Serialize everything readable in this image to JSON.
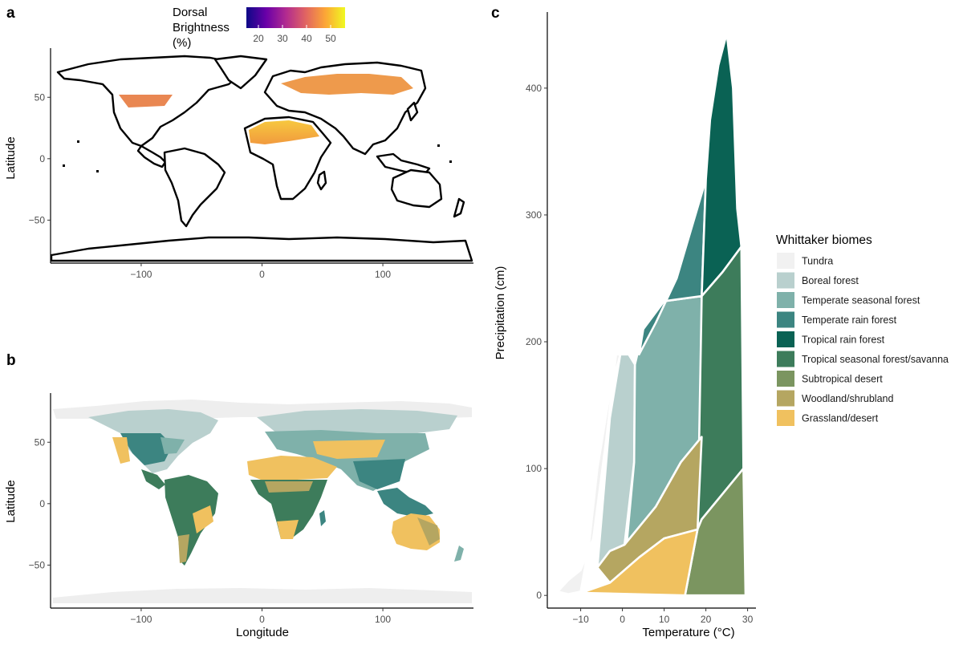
{
  "panels": {
    "a": {
      "label": "a",
      "type": "map",
      "ylabel": "Latitude",
      "xticks": [
        -100,
        0,
        100
      ],
      "yticks": [
        -50,
        0,
        50
      ],
      "xlim": [
        -175,
        175
      ],
      "ylim": [
        -85,
        90
      ],
      "colorbar": {
        "title_lines": [
          "Dorsal",
          "Brightness",
          "(%)"
        ],
        "ticks": [
          20,
          30,
          40,
          50
        ],
        "range": [
          15,
          56
        ],
        "colors": [
          "#0d0887",
          "#6a00a8",
          "#b12a90",
          "#e16462",
          "#fca636",
          "#f0f921"
        ]
      }
    },
    "b": {
      "label": "b",
      "type": "map",
      "xlabel": "Longitude",
      "ylabel": "Latitude",
      "xticks": [
        -100,
        0,
        100
      ],
      "yticks": [
        -50,
        0,
        50
      ],
      "xlim": [
        -175,
        175
      ],
      "ylim": [
        -85,
        90
      ]
    },
    "c": {
      "label": "c",
      "type": "area",
      "xlabel": "Temperature (°C)",
      "ylabel": "Precipitation (cm)",
      "xticks": [
        -10,
        0,
        10,
        20,
        30
      ],
      "yticks": [
        0,
        100,
        200,
        300,
        400
      ],
      "xlim": [
        -18,
        32
      ],
      "ylim": [
        -10,
        460
      ]
    }
  },
  "legend": {
    "title": "Whittaker biomes",
    "items": [
      {
        "label": "Tundra",
        "color": "#f1f1f1"
      },
      {
        "label": "Boreal forest",
        "color": "#b9d0ce"
      },
      {
        "label": "Temperate seasonal forest",
        "color": "#7fb1aa"
      },
      {
        "label": "Temperate rain forest",
        "color": "#3c8581"
      },
      {
        "label": "Tropical rain forest",
        "color": "#0a6254"
      },
      {
        "label": "Tropical seasonal forest/savanna",
        "color": "#3d7c5b"
      },
      {
        "label": "Subtropical desert",
        "color": "#7b9560"
      },
      {
        "label": "Woodland/shrubland",
        "color": "#b5a661"
      },
      {
        "label": "Grassland/desert",
        "color": "#f0c15f"
      }
    ]
  },
  "chart_data": [
    {
      "type": "area",
      "panel": "c",
      "title": "",
      "xlabel": "Temperature (°C)",
      "ylabel": "Precipitation (cm)",
      "xlim": [
        -18,
        32
      ],
      "ylim": [
        -10,
        460
      ],
      "grid": false,
      "legend_position": "right",
      "series": [
        {
          "name": "Tundra",
          "color": "#f1f1f1",
          "points": [
            [
              -15.5,
              3
            ],
            [
              -13,
              12
            ],
            [
              -10,
              20
            ],
            [
              -7,
              45
            ],
            [
              -4,
              120
            ],
            [
              -1.5,
              190
            ],
            [
              -0.5,
              190
            ],
            [
              -3,
              160
            ],
            [
              -6,
              100
            ],
            [
              -8,
              40
            ],
            [
              -10,
              3
            ],
            [
              -13,
              1
            ]
          ]
        },
        {
          "name": "Boreal forest",
          "color": "#b9d0ce",
          "points": [
            [
              -6,
              22
            ],
            [
              -3,
              140
            ],
            [
              -0.5,
              190
            ],
            [
              1.5,
              190
            ],
            [
              3,
              182
            ],
            [
              2.8,
              105
            ],
            [
              0.5,
              40
            ],
            [
              -3,
              35
            ]
          ]
        },
        {
          "name": "Temperate seasonal forest",
          "color": "#7fb1aa",
          "points": [
            [
              1,
              40
            ],
            [
              2.8,
              105
            ],
            [
              3,
              182
            ],
            [
              5,
              210
            ],
            [
              10,
              232
            ],
            [
              19,
              236
            ],
            [
              19,
              125
            ],
            [
              14,
              105
            ],
            [
              8,
              70
            ]
          ]
        },
        {
          "name": "Temperate rain forest",
          "color": "#3c8581",
          "points": [
            [
              4,
              190
            ],
            [
              5,
              210
            ],
            [
              10,
              232
            ],
            [
              19,
              236
            ],
            [
              20,
              328
            ],
            [
              13,
              250
            ],
            [
              8,
              215
            ]
          ]
        },
        {
          "name": "Tropical rain forest",
          "color": "#0a6254",
          "points": [
            [
              20,
              328
            ],
            [
              21,
              375
            ],
            [
              23,
              418
            ],
            [
              25,
              443
            ],
            [
              26.5,
              400
            ],
            [
              27.5,
              305
            ],
            [
              28.5,
              275
            ],
            [
              24,
              255
            ],
            [
              19,
              236
            ]
          ]
        },
        {
          "name": "Tropical seasonal forest/savanna",
          "color": "#3d7c5b",
          "points": [
            [
              19,
              236
            ],
            [
              24,
              255
            ],
            [
              28.5,
              275
            ],
            [
              29,
              100
            ],
            [
              24,
              80
            ],
            [
              19,
              60
            ],
            [
              18,
              52
            ]
          ]
        },
        {
          "name": "Subtropical desert",
          "color": "#7b9560",
          "points": [
            [
              18,
              52
            ],
            [
              19,
              60
            ],
            [
              24,
              80
            ],
            [
              29,
              100
            ],
            [
              29.5,
              0
            ],
            [
              15,
              0
            ]
          ]
        },
        {
          "name": "Woodland/shrubland",
          "color": "#b5a661",
          "points": [
            [
              -6,
              22
            ],
            [
              -3,
              35
            ],
            [
              0.5,
              40
            ],
            [
              8,
              70
            ],
            [
              14,
              105
            ],
            [
              19,
              125
            ],
            [
              18,
              52
            ],
            [
              10,
              45
            ],
            [
              4,
              30
            ],
            [
              -3,
              10
            ]
          ]
        },
        {
          "name": "Grassland/desert",
          "color": "#f0c15f",
          "points": [
            [
              -9,
              3
            ],
            [
              -3,
              10
            ],
            [
              4,
              30
            ],
            [
              10,
              45
            ],
            [
              18,
              52
            ],
            [
              15,
              0
            ],
            [
              -9.5,
              2
            ]
          ]
        }
      ]
    }
  ]
}
